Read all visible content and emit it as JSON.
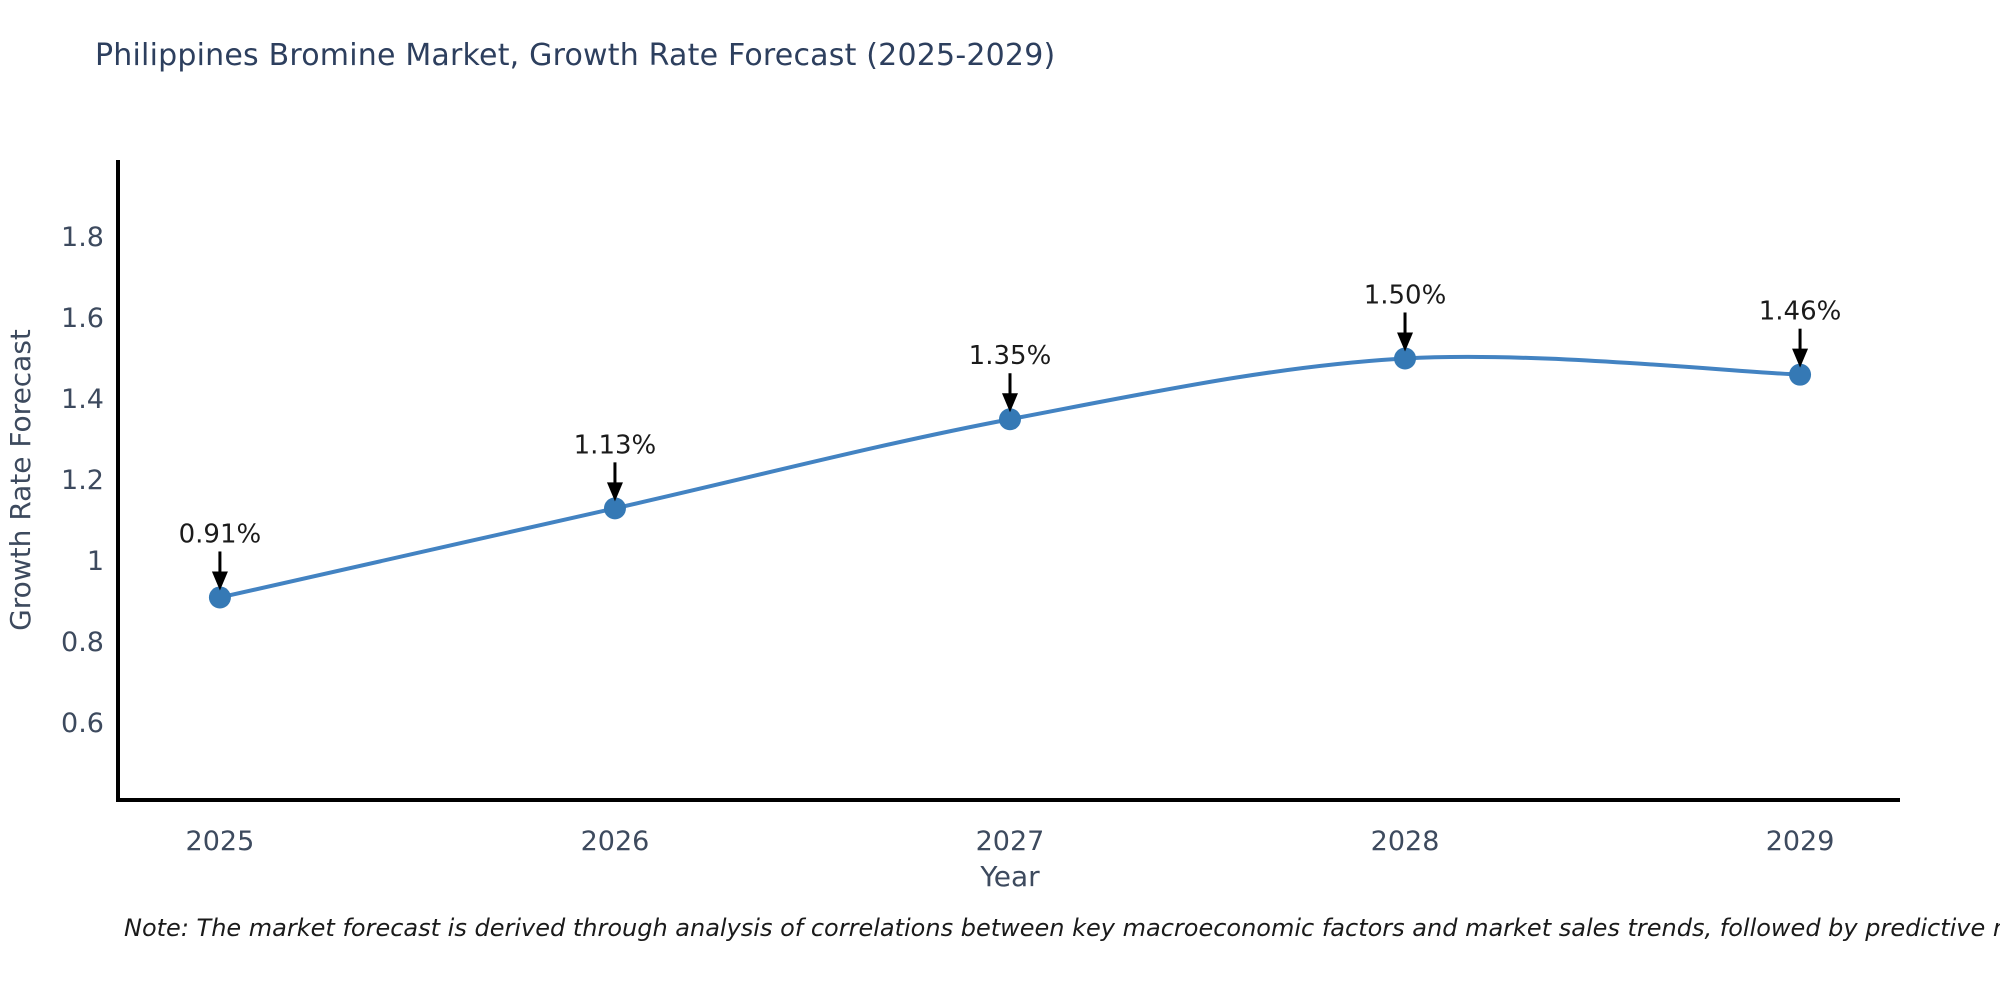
{
  "page": {
    "note": "Note: The market forecast is derived through analysis of correlations between key macroeconomic factors and market sales trends, followed by predictive modeling to project future sales"
  },
  "chart_data": {
    "type": "line",
    "title": "Philippines Bromine Market, Growth Rate Forecast (2025-2029)",
    "xlabel": "Year",
    "ylabel": "Growth Rate Forecast",
    "x": [
      2025,
      2026,
      2027,
      2028,
      2029
    ],
    "values": [
      0.91,
      1.13,
      1.35,
      1.5,
      1.46
    ],
    "point_labels": [
      "0.91%",
      "1.13%",
      "1.35%",
      "1.50%",
      "1.46%"
    ],
    "xticks": [
      2025,
      2026,
      2027,
      2028,
      2029
    ],
    "xtick_labels": [
      "2025",
      "2026",
      "2027",
      "2028",
      "2029"
    ],
    "yticks": [
      0.6,
      0.8,
      1,
      1.2,
      1.4,
      1.6,
      1.8
    ],
    "ytick_labels": [
      "0.6",
      "0.8",
      "1",
      "1.2",
      "1.4",
      "1.6",
      "1.8"
    ],
    "xlim": [
      2024.742,
      2029.253
    ],
    "ylim": [
      0.41,
      1.99
    ],
    "grid": false,
    "legend": "none",
    "line_shape": "spline",
    "line_color": "#4383c2",
    "marker_color": "#3579b5",
    "axis_color": "#000000",
    "tick_color": "#3d4a5e",
    "annotation_color": "#1b1b1b",
    "arrow_color": "#000000"
  }
}
